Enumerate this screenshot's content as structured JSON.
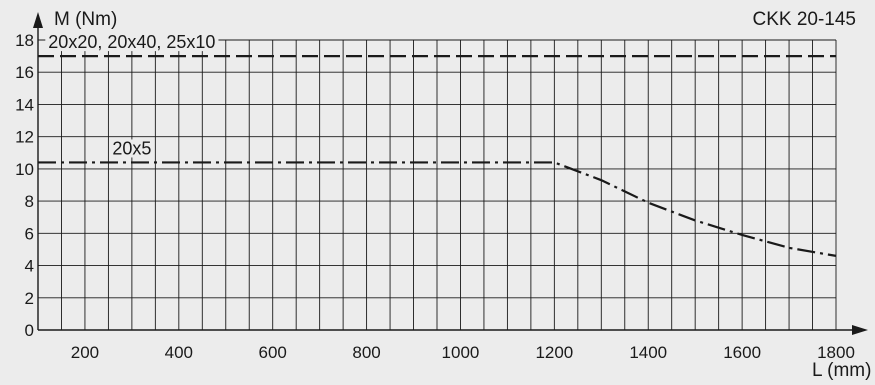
{
  "chart_data": {
    "type": "line",
    "title": "CKK 20-145",
    "ylabel": "M (Nm)",
    "xlabel": "L (mm)",
    "xlim": [
      100,
      1800
    ],
    "ylim": [
      0,
      18
    ],
    "x_ticks": [
      200,
      400,
      600,
      800,
      1000,
      1200,
      1400,
      1600,
      1800
    ],
    "y_ticks": [
      0,
      2,
      4,
      6,
      8,
      10,
      12,
      14,
      16,
      18
    ],
    "grid": true,
    "series": [
      {
        "name": "20x20, 20x40, 25x10",
        "style": "dashed",
        "x": [
          100,
          1800
        ],
        "y": [
          17,
          17
        ]
      },
      {
        "name": "20x5",
        "style": "dash-dot",
        "x": [
          100,
          1200,
          1300,
          1400,
          1500,
          1600,
          1700,
          1800
        ],
        "y": [
          10.4,
          10.4,
          9.3,
          7.9,
          6.8,
          5.9,
          5.1,
          4.6
        ]
      }
    ]
  },
  "colors": {
    "background": "#ececec",
    "ink": "#1a1a1a"
  }
}
